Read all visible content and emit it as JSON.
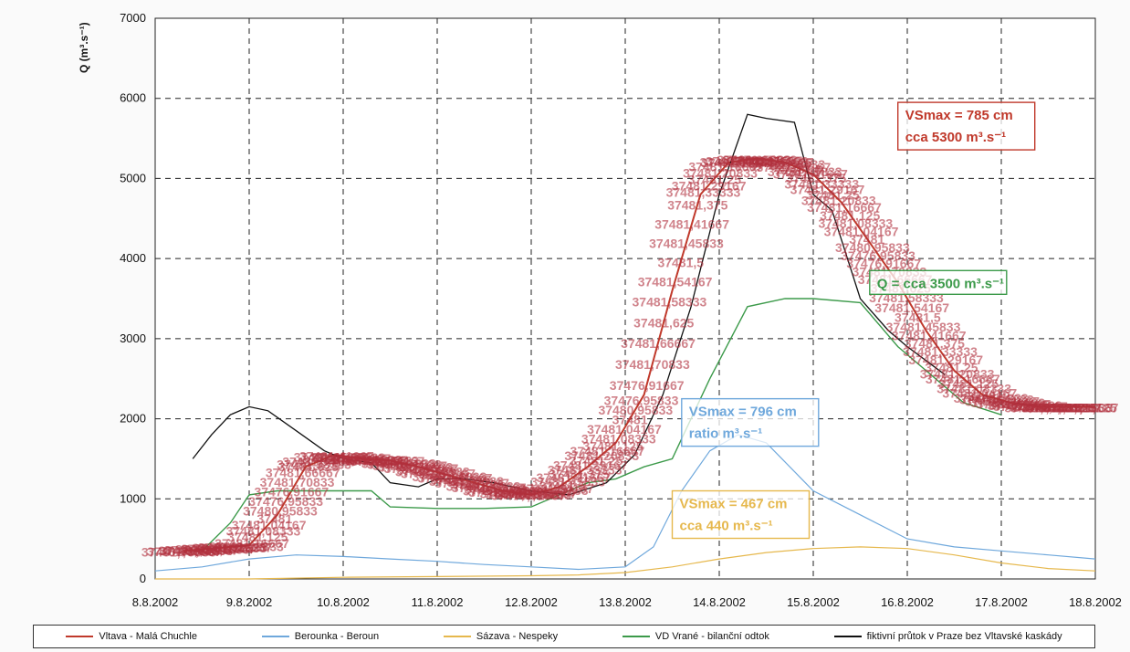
{
  "chart_data": {
    "type": "line",
    "ylabel": "Q (m³.s⁻¹)",
    "xlim": [
      "8.8.2002",
      "18.8.2002"
    ],
    "ylim": [
      0,
      7000
    ],
    "yticks": [
      0,
      1000,
      2000,
      3000,
      4000,
      5000,
      6000,
      7000
    ],
    "x_tick_labels": [
      "8.8.2002",
      "9.8.2002",
      "10.8.2002",
      "11.8.2002",
      "12.8.2002",
      "13.8.2002",
      "14.8.2002",
      "15.8.2002",
      "16.8.2002",
      "17.8.2002",
      "18.8.2002"
    ],
    "grid": true,
    "legend_placement": "bottom",
    "series": [
      {
        "name": "Vltava - Malá Chuchle",
        "color": "#c0392b",
        "x": [
          0.3,
          0.6,
          1.0,
          1.3,
          1.6,
          1.9,
          2.2,
          2.5,
          2.8,
          3.1,
          3.4,
          3.7,
          4.0,
          4.3,
          4.6,
          4.9,
          5.2,
          5.5,
          5.8,
          6.1,
          6.4,
          6.7,
          7.0,
          7.3,
          7.6,
          7.9,
          8.2,
          8.5,
          8.8,
          9.1,
          9.4,
          9.7,
          10.0
        ],
        "values": [
          350,
          380,
          420,
          800,
          1400,
          1550,
          1500,
          1480,
          1400,
          1300,
          1200,
          1100,
          1050,
          1150,
          1400,
          1700,
          2300,
          3600,
          4800,
          5200,
          5250,
          5200,
          5050,
          4700,
          4200,
          3700,
          3100,
          2600,
          2300,
          2200,
          2150,
          2150,
          2150
        ]
      },
      {
        "name": "Berounka - Beroun",
        "color": "#6fa8dc",
        "x": [
          0.0,
          0.5,
          1.0,
          1.5,
          2.0,
          2.5,
          3.0,
          3.5,
          4.0,
          4.5,
          5.0,
          5.3,
          5.6,
          5.9,
          6.2,
          6.5,
          7.0,
          7.5,
          8.0,
          8.5,
          9.0,
          9.5,
          10.0
        ],
        "values": [
          100,
          150,
          250,
          300,
          280,
          250,
          220,
          180,
          150,
          120,
          150,
          400,
          1100,
          1600,
          1800,
          1700,
          1100,
          800,
          500,
          400,
          350,
          300,
          250
        ]
      },
      {
        "name": "Sázava - Nespeky",
        "color": "#e6b84d",
        "x": [
          0.0,
          1.0,
          2.0,
          3.0,
          4.0,
          4.5,
          5.0,
          5.5,
          6.0,
          6.5,
          7.0,
          7.5,
          8.0,
          8.5,
          9.0,
          9.5,
          10.0
        ],
        "values": [
          0,
          0,
          20,
          30,
          40,
          50,
          80,
          150,
          250,
          330,
          380,
          400,
          380,
          300,
          200,
          130,
          100
        ]
      },
      {
        "name": "VD Vrané - bilanční odtok",
        "color": "#3c9a4a",
        "x": [
          0.5,
          0.8,
          1.0,
          1.3,
          1.8,
          2.3,
          2.5,
          3.0,
          3.5,
          4.0,
          4.3,
          4.6,
          4.9,
          5.2,
          5.5,
          5.9,
          6.3,
          6.7,
          7.0,
          7.5,
          7.9,
          8.2,
          8.6,
          9.0
        ],
        "values": [
          350,
          700,
          1050,
          1100,
          1100,
          1100,
          900,
          880,
          880,
          900,
          1050,
          1200,
          1250,
          1400,
          1500,
          2500,
          3400,
          3500,
          3500,
          3450,
          2900,
          2600,
          2200,
          2050
        ]
      },
      {
        "name": "fiktivní průtok v Praze bez Vltavské kaskády",
        "color": "#111111",
        "x": [
          0.4,
          0.6,
          0.8,
          1.0,
          1.2,
          1.5,
          1.8,
          2.0,
          2.3,
          2.5,
          2.8,
          3.0,
          3.3,
          3.6,
          4.0,
          4.4,
          4.8,
          5.1,
          5.4,
          5.7,
          6.0,
          6.3,
          6.5,
          6.8,
          7.0,
          7.2,
          7.5,
          7.8,
          8.0,
          8.4
        ],
        "values": [
          1500,
          1800,
          2050,
          2150,
          2100,
          1850,
          1600,
          1500,
          1450,
          1200,
          1150,
          1250,
          1250,
          1200,
          1100,
          1050,
          1200,
          1550,
          2300,
          3400,
          4800,
          5800,
          5750,
          5700,
          4800,
          4600,
          3500,
          3100,
          2900,
          2550
        ]
      }
    ],
    "annotations": [
      {
        "line1": "VSmax = 785 cm",
        "line2": "cca 5300 m³.s⁻¹",
        "color": "#c0392b",
        "x": 7.9,
        "y": 5950
      },
      {
        "line1": "Q = cca 3500 m³.s⁻¹",
        "color": "#3c9a4a",
        "x": 7.6,
        "y": 3850
      },
      {
        "line1": "VSmax = 796 cm",
        "line2": "ratio m³.s⁻¹",
        "color": "#6fa8dc",
        "x": 5.6,
        "y": 2250
      },
      {
        "line1": "VSmax = 467 cm",
        "line2": "cca 440 m³.s⁻¹",
        "color": "#e6b84d",
        "x": 5.5,
        "y": 1100
      }
    ],
    "red_overprint_labels": [
      "37481,70833",
      "37481,66667",
      "37481,625",
      "37481,58333",
      "37481,54167",
      "37481,5",
      "37481,45833",
      "37481,41667",
      "37481,375",
      "37481,33333",
      "37481,29167",
      "37481,25",
      "37481,20833",
      "37481,16667",
      "37481,125",
      "37481,08333",
      "37481,04167",
      "37481",
      "37480,95833",
      "37476,95833",
      "37476,91667"
    ]
  }
}
